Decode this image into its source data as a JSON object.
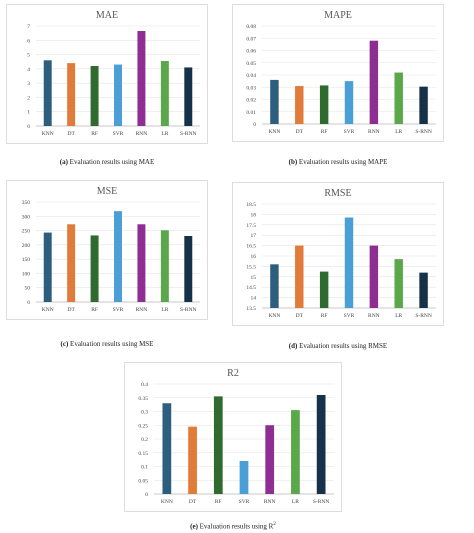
{
  "categories": [
    "KNN",
    "DT",
    "RF",
    "SVR",
    "RNN",
    "LR",
    "S-RNN"
  ],
  "colors": [
    "#2e5e7e",
    "#e07b39",
    "#2f6b2f",
    "#4a9fd6",
    "#8e2d92",
    "#5aa84a",
    "#16324a"
  ],
  "chart_data": [
    {
      "type": "bar",
      "title": "MAE",
      "categories": [
        "KNN",
        "DT",
        "RF",
        "SVR",
        "RNN",
        "LR",
        "S-RNN"
      ],
      "values": [
        4.6,
        4.4,
        4.2,
        4.3,
        6.65,
        4.55,
        4.1
      ],
      "ylim": [
        0,
        7
      ],
      "yticks": [
        "0",
        "1",
        "2",
        "3",
        "4",
        "5",
        "6",
        "7"
      ],
      "grid": true,
      "caption_label": "(a)",
      "caption_text": "Evaluation results using MAE"
    },
    {
      "type": "bar",
      "title": "MAPE",
      "categories": [
        "KNN",
        "DT",
        "RF",
        "SVR",
        "RNN",
        "LR",
        "S-RNN"
      ],
      "values": [
        0.036,
        0.031,
        0.0315,
        0.035,
        0.068,
        0.042,
        0.0305
      ],
      "ylim": [
        0,
        0.08
      ],
      "yticks": [
        "0",
        "0.01",
        "0.02",
        "0.03",
        "0.04",
        "0.05",
        "0.06",
        "0.07",
        "0.08"
      ],
      "grid": true,
      "caption_label": "(b)",
      "caption_text": "Evaluation results using MAPE"
    },
    {
      "type": "bar",
      "title": "MSE",
      "categories": [
        "KNN",
        "DT",
        "RF",
        "SVR",
        "RNN",
        "LR",
        "S-RNN"
      ],
      "values": [
        243,
        272,
        233,
        318,
        272,
        251,
        231
      ],
      "ylim": [
        0,
        350
      ],
      "yticks": [
        "0",
        "50",
        "100",
        "150",
        "200",
        "250",
        "300",
        "350"
      ],
      "grid": true,
      "caption_label": "(c)",
      "caption_text": "Evaluation results using MSE"
    },
    {
      "type": "bar",
      "title": "RMSE",
      "categories": [
        "KNN",
        "DT",
        "RF",
        "SVR",
        "RNN",
        "LR",
        "S-RNN"
      ],
      "values": [
        15.6,
        16.5,
        15.25,
        17.85,
        16.5,
        15.85,
        15.2
      ],
      "ylim": [
        13.5,
        18.5
      ],
      "yticks": [
        "13.5",
        "14",
        "14.5",
        "15",
        "15.5",
        "16",
        "16.5",
        "17",
        "17.5",
        "18",
        "18.5"
      ],
      "grid": true,
      "caption_label": "(d)",
      "caption_text": "Evaluation results using RMSE"
    },
    {
      "type": "bar",
      "title": "R2",
      "categories": [
        "KNN",
        "DT",
        "RF",
        "SVR",
        "RNN",
        "LR",
        "S-RNN"
      ],
      "values": [
        0.33,
        0.245,
        0.355,
        0.12,
        0.25,
        0.305,
        0.36
      ],
      "ylim": [
        0,
        0.4
      ],
      "yticks": [
        "0",
        "0.05",
        "0.1",
        "0.15",
        "0.2",
        "0.25",
        "0.3",
        "0.35",
        "0.4"
      ],
      "grid": true,
      "caption_label": "(e)",
      "caption_text": "Evaluation results using R",
      "caption_sup": "2"
    }
  ]
}
